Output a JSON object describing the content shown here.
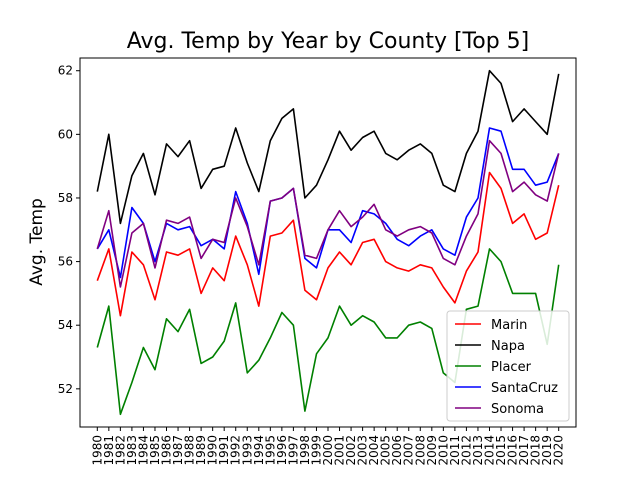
{
  "chart_data": {
    "type": "line",
    "title": "Avg. Temp by Year by County [Top 5]",
    "xlabel": "",
    "ylabel": "Avg. Temp",
    "ylim": [
      50.8,
      62.4
    ],
    "yticks": [
      52,
      54,
      56,
      58,
      60,
      62
    ],
    "grid": false,
    "legend_position": "bottom-right",
    "x": [
      1980,
      1981,
      1982,
      1983,
      1984,
      1985,
      1986,
      1987,
      1988,
      1989,
      1990,
      1991,
      1992,
      1993,
      1994,
      1995,
      1996,
      1997,
      1998,
      1999,
      2000,
      2001,
      2002,
      2003,
      2004,
      2005,
      2006,
      2007,
      2008,
      2009,
      2010,
      2011,
      2012,
      2013,
      2014,
      2015,
      2016,
      2017,
      2018,
      2019,
      2020
    ],
    "series": [
      {
        "name": "Marin",
        "color": "#ff0000",
        "values": [
          55.4,
          56.4,
          54.3,
          56.3,
          55.9,
          54.8,
          56.3,
          56.2,
          56.4,
          55.0,
          55.8,
          55.4,
          56.8,
          55.9,
          54.6,
          56.8,
          56.9,
          57.3,
          55.1,
          54.8,
          55.8,
          56.3,
          55.9,
          56.6,
          56.7,
          56.0,
          55.8,
          55.7,
          55.9,
          55.8,
          55.2,
          54.7,
          55.7,
          56.3,
          58.8,
          58.3,
          57.2,
          57.5,
          56.7,
          56.9,
          58.4
        ]
      },
      {
        "name": "Napa",
        "color": "#000000",
        "values": [
          58.2,
          60.0,
          57.2,
          58.7,
          59.4,
          58.1,
          59.7,
          59.3,
          59.8,
          58.3,
          58.9,
          59.0,
          60.2,
          59.1,
          58.2,
          59.8,
          60.5,
          60.8,
          58.0,
          58.4,
          59.2,
          60.1,
          59.5,
          59.9,
          60.1,
          59.4,
          59.2,
          59.5,
          59.7,
          59.4,
          58.4,
          58.2,
          59.4,
          60.1,
          62.0,
          61.6,
          60.4,
          60.8,
          60.4,
          60.0,
          61.9
        ]
      },
      {
        "name": "Placer",
        "color": "#008000",
        "values": [
          53.3,
          54.6,
          51.2,
          52.2,
          53.3,
          52.6,
          54.2,
          53.8,
          54.5,
          52.8,
          53.0,
          53.5,
          54.7,
          52.5,
          52.9,
          53.6,
          54.4,
          54.0,
          51.3,
          53.1,
          53.6,
          54.6,
          54.0,
          54.3,
          54.1,
          53.6,
          53.6,
          54.0,
          54.1,
          53.9,
          52.5,
          52.2,
          54.5,
          54.6,
          56.4,
          56.0,
          55.0,
          55.0,
          55.0,
          53.4,
          55.9
        ]
      },
      {
        "name": "SantaCruz",
        "color": "#0000ff",
        "values": [
          56.4,
          57.0,
          55.5,
          57.7,
          57.2,
          56.0,
          57.2,
          57.0,
          57.1,
          56.5,
          56.7,
          56.4,
          58.2,
          57.2,
          55.6,
          57.9,
          58.0,
          58.3,
          56.1,
          55.8,
          57.0,
          57.0,
          56.6,
          57.6,
          57.5,
          57.2,
          56.7,
          56.5,
          56.8,
          57.0,
          56.4,
          56.2,
          57.4,
          58.0,
          60.2,
          60.1,
          58.9,
          58.9,
          58.4,
          58.5,
          59.4
        ]
      },
      {
        "name": "Sonoma",
        "color": "#800080",
        "values": [
          56.4,
          57.6,
          55.2,
          56.9,
          57.2,
          55.8,
          57.3,
          57.2,
          57.4,
          56.1,
          56.7,
          56.6,
          58.0,
          57.1,
          55.9,
          57.9,
          58.0,
          58.3,
          56.2,
          56.1,
          57.0,
          57.6,
          57.1,
          57.4,
          57.8,
          57.0,
          56.8,
          57.0,
          57.1,
          56.9,
          56.1,
          55.9,
          56.8,
          57.5,
          59.8,
          59.4,
          58.2,
          58.5,
          58.1,
          57.9,
          59.4
        ]
      }
    ]
  }
}
